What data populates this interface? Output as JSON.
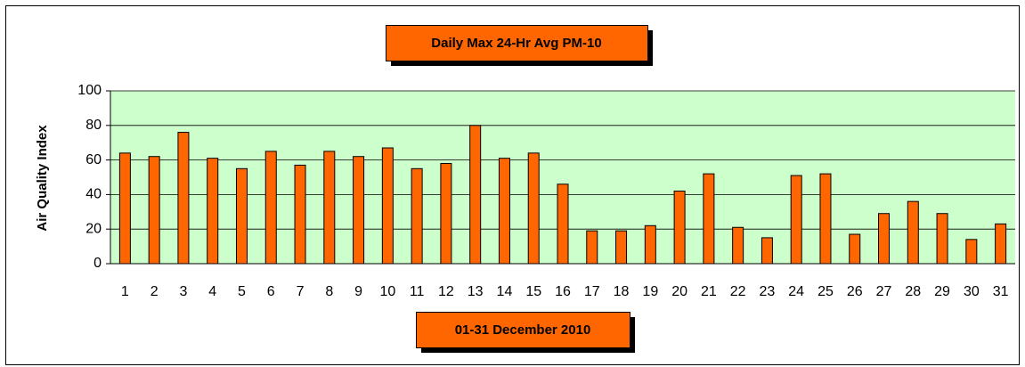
{
  "chart_data": {
    "type": "bar",
    "title": "Daily Max 24-Hr Avg PM-10",
    "x_label": "01-31 December 2010",
    "y_label": "Air Quality Index",
    "categories": [
      "1",
      "2",
      "3",
      "4",
      "5",
      "6",
      "7",
      "8",
      "9",
      "10",
      "11",
      "12",
      "13",
      "14",
      "15",
      "16",
      "17",
      "18",
      "19",
      "20",
      "21",
      "22",
      "23",
      "24",
      "25",
      "26",
      "27",
      "28",
      "29",
      "30",
      "31"
    ],
    "values": [
      64,
      62,
      76,
      61,
      55,
      65,
      57,
      65,
      62,
      67,
      55,
      58,
      80,
      61,
      64,
      46,
      19,
      19,
      22,
      42,
      52,
      21,
      15,
      51,
      52,
      17,
      29,
      36,
      29,
      14,
      23
    ],
    "color": "#ff6600",
    "ylim": [
      0,
      100
    ],
    "yticks": [
      0,
      20,
      40,
      60,
      80,
      100
    ],
    "grid": true
  }
}
